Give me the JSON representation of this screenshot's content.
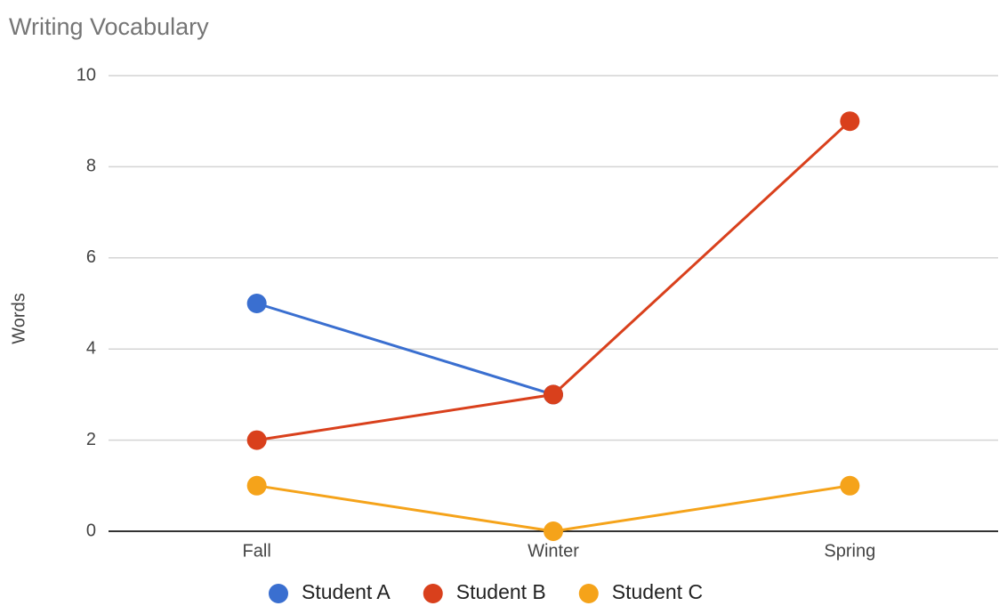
{
  "chart_data": {
    "type": "line",
    "title": "Writing Vocabulary",
    "y_label": "Words",
    "categories": [
      "Fall",
      "Winter",
      "Spring"
    ],
    "series": [
      {
        "name": "Student A",
        "color": "#3a6fd0",
        "values": [
          5,
          3,
          null
        ]
      },
      {
        "name": "Student B",
        "color": "#d9401c",
        "values": [
          2,
          3,
          9
        ]
      },
      {
        "name": "Student C",
        "color": "#f5a31a",
        "values": [
          1,
          0,
          1
        ]
      }
    ],
    "ylim": [
      0,
      10
    ],
    "yticks": [
      0,
      2,
      4,
      6,
      8,
      10
    ],
    "grid": true,
    "legend": "bottom"
  }
}
